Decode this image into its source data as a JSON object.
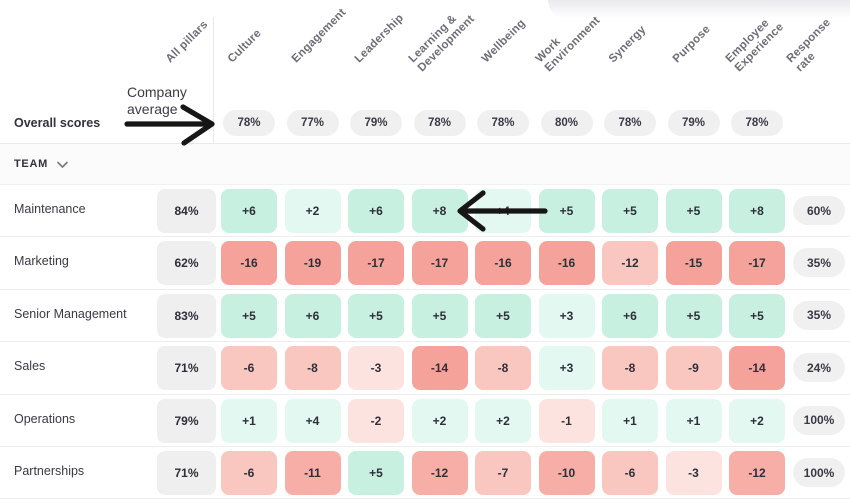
{
  "palette": {
    "p2": "#c7f0e0",
    "p1": "#e3f8f0",
    "n4": "#f5a39a",
    "n3": "#f6aea6",
    "n2": "#f9c7c0",
    "n1": "#fce3df",
    "neutral_cell": "#f0eff0",
    "pill": "#f1f0f1",
    "arrow": "#161616"
  },
  "header": {
    "columns": [
      {
        "label": "All pillars"
      },
      {
        "label": "Culture"
      },
      {
        "label": "Engagement"
      },
      {
        "label": "Leadership"
      },
      {
        "label": "Learning &\nDevelopment"
      },
      {
        "label": "Wellbeing"
      },
      {
        "label": "Work\nEnvironment"
      },
      {
        "label": "Synergy"
      },
      {
        "label": "Purpose"
      },
      {
        "label": "Employee\nExperience"
      },
      {
        "label": "Response\nrate"
      }
    ]
  },
  "annotations": {
    "company_average": "Company\naverage"
  },
  "overall_row": {
    "label": "Overall scores",
    "scores": [
      "78%",
      "77%",
      "79%",
      "78%",
      "78%",
      "80%",
      "78%",
      "79%",
      "78%"
    ]
  },
  "team_section": {
    "label": "TEAM"
  },
  "teams": [
    {
      "name": "Maintenance",
      "overall": "84%",
      "response": "60%",
      "cells": [
        [
          "+6",
          "p2"
        ],
        [
          "+2",
          "p1"
        ],
        [
          "+6",
          "p2"
        ],
        [
          "+8",
          "p2"
        ],
        [
          "+4",
          "p1"
        ],
        [
          "+5",
          "p2"
        ],
        [
          "+5",
          "p2"
        ],
        [
          "+5",
          "p2"
        ],
        [
          "+8",
          "p2"
        ]
      ]
    },
    {
      "name": "Marketing",
      "overall": "62%",
      "response": "35%",
      "cells": [
        [
          "-16",
          "n4"
        ],
        [
          "-19",
          "n4"
        ],
        [
          "-17",
          "n4"
        ],
        [
          "-17",
          "n4"
        ],
        [
          "-16",
          "n4"
        ],
        [
          "-16",
          "n4"
        ],
        [
          "-12",
          "n2"
        ],
        [
          "-15",
          "n4"
        ],
        [
          "-17",
          "n4"
        ]
      ]
    },
    {
      "name": "Senior Management",
      "overall": "83%",
      "response": "35%",
      "cells": [
        [
          "+5",
          "p2"
        ],
        [
          "+6",
          "p2"
        ],
        [
          "+5",
          "p2"
        ],
        [
          "+5",
          "p2"
        ],
        [
          "+5",
          "p2"
        ],
        [
          "+3",
          "p1"
        ],
        [
          "+6",
          "p2"
        ],
        [
          "+5",
          "p2"
        ],
        [
          "+5",
          "p2"
        ]
      ]
    },
    {
      "name": "Sales",
      "overall": "71%",
      "response": "24%",
      "cells": [
        [
          "-6",
          "n2"
        ],
        [
          "-8",
          "n2"
        ],
        [
          "-3",
          "n1"
        ],
        [
          "-14",
          "n4"
        ],
        [
          "-8",
          "n2"
        ],
        [
          "+3",
          "p1"
        ],
        [
          "-8",
          "n2"
        ],
        [
          "-9",
          "n2"
        ],
        [
          "-14",
          "n4"
        ]
      ]
    },
    {
      "name": "Operations",
      "overall": "79%",
      "response": "100%",
      "cells": [
        [
          "+1",
          "p1"
        ],
        [
          "+4",
          "p1"
        ],
        [
          "-2",
          "n1"
        ],
        [
          "+2",
          "p1"
        ],
        [
          "+2",
          "p1"
        ],
        [
          "-1",
          "n1"
        ],
        [
          "+1",
          "p1"
        ],
        [
          "+1",
          "p1"
        ],
        [
          "+2",
          "p1"
        ]
      ]
    },
    {
      "name": "Partnerships",
      "overall": "71%",
      "response": "100%",
      "cells": [
        [
          "-6",
          "n2"
        ],
        [
          "-11",
          "n3"
        ],
        [
          "+5",
          "p2"
        ],
        [
          "-12",
          "n3"
        ],
        [
          "-7",
          "n2"
        ],
        [
          "-10",
          "n3"
        ],
        [
          "-6",
          "n2"
        ],
        [
          "-3",
          "n1"
        ],
        [
          "-12",
          "n3"
        ]
      ]
    }
  ]
}
